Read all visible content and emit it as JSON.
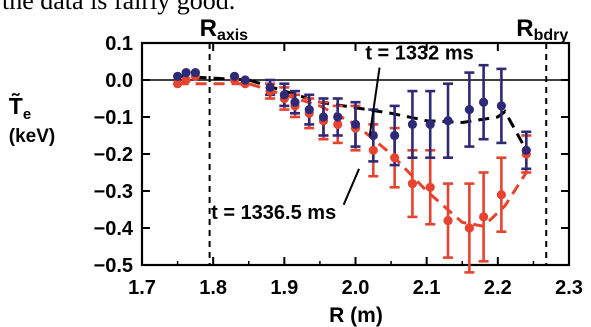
{
  "caption_fragment": "the data is fairly good.",
  "chart_data": {
    "type": "scatter",
    "title": "",
    "xlabel": "R (m)",
    "ylabel": "T̃e (keV)",
    "xlim": [
      1.7,
      2.3
    ],
    "ylim": [
      -0.5,
      0.1
    ],
    "xticks": [
      "1.7",
      "1.8",
      "1.9",
      "2.0",
      "2.1",
      "2.2",
      "2.3"
    ],
    "yticks": [
      "0.1",
      "0.0",
      "−0.1",
      "−0.2",
      "−0.3",
      "−0.4",
      "−0.5"
    ],
    "grid": false,
    "reference_lines": [
      {
        "label": "R",
        "subscript": "axis",
        "x": 1.795
      },
      {
        "label": "R",
        "subscript": "bdry",
        "x": 2.268
      }
    ],
    "zero_line": 0.0,
    "series": [
      {
        "name": "t = 1332 ms",
        "color": "#2e2a78",
        "points": [
          {
            "x": 1.75,
            "y": 0.01,
            "err": 0.0
          },
          {
            "x": 1.762,
            "y": 0.02,
            "err": 0.0
          },
          {
            "x": 1.775,
            "y": 0.02,
            "err": 0.0
          },
          {
            "x": 1.83,
            "y": 0.01,
            "err": 0.0
          },
          {
            "x": 1.845,
            "y": 0.0,
            "err": 0.0
          },
          {
            "x": 1.88,
            "y": -0.02,
            "err": 0.02
          },
          {
            "x": 1.9,
            "y": -0.04,
            "err": 0.03
          },
          {
            "x": 1.915,
            "y": -0.06,
            "err": 0.03
          },
          {
            "x": 1.935,
            "y": -0.08,
            "err": 0.04
          },
          {
            "x": 1.955,
            "y": -0.1,
            "err": 0.05
          },
          {
            "x": 1.975,
            "y": -0.1,
            "err": 0.05
          },
          {
            "x": 2.0,
            "y": -0.12,
            "err": 0.06
          },
          {
            "x": 2.025,
            "y": -0.15,
            "err": 0.07
          },
          {
            "x": 2.055,
            "y": -0.15,
            "err": 0.08
          },
          {
            "x": 2.08,
            "y": -0.12,
            "err": 0.09
          },
          {
            "x": 2.105,
            "y": -0.12,
            "err": 0.09
          },
          {
            "x": 2.13,
            "y": -0.11,
            "err": 0.1
          },
          {
            "x": 2.16,
            "y": -0.08,
            "err": 0.1
          },
          {
            "x": 2.18,
            "y": -0.06,
            "err": 0.1
          },
          {
            "x": 2.205,
            "y": -0.07,
            "err": 0.1
          },
          {
            "x": 2.24,
            "y": -0.19,
            "err": 0.05
          }
        ],
        "fit_line": {
          "style": "dashed",
          "points": [
            [
              1.75,
              0.01
            ],
            [
              1.85,
              0.0
            ],
            [
              1.95,
              -0.06
            ],
            [
              2.05,
              -0.09
            ],
            [
              2.1,
              -0.11
            ],
            [
              2.15,
              -0.115
            ],
            [
              2.2,
              -0.1
            ],
            [
              2.21,
              -0.085
            ],
            [
              2.24,
              -0.19
            ]
          ]
        }
      },
      {
        "name": "t = 1336.5 ms",
        "color": "#e8432e",
        "points": [
          {
            "x": 1.75,
            "y": -0.01,
            "err": 0.0
          },
          {
            "x": 1.762,
            "y": 0.0,
            "err": 0.0
          },
          {
            "x": 1.775,
            "y": 0.01,
            "err": 0.0
          },
          {
            "x": 1.83,
            "y": 0.0,
            "err": 0.0
          },
          {
            "x": 1.845,
            "y": -0.01,
            "err": 0.0
          },
          {
            "x": 1.88,
            "y": -0.03,
            "err": 0.02
          },
          {
            "x": 1.9,
            "y": -0.05,
            "err": 0.03
          },
          {
            "x": 1.915,
            "y": -0.07,
            "err": 0.03
          },
          {
            "x": 1.935,
            "y": -0.09,
            "err": 0.04
          },
          {
            "x": 1.955,
            "y": -0.11,
            "err": 0.05
          },
          {
            "x": 1.975,
            "y": -0.12,
            "err": 0.05
          },
          {
            "x": 2.0,
            "y": -0.13,
            "err": 0.06
          },
          {
            "x": 2.025,
            "y": -0.19,
            "err": 0.07
          },
          {
            "x": 2.055,
            "y": -0.21,
            "err": 0.08
          },
          {
            "x": 2.08,
            "y": -0.28,
            "err": 0.09
          },
          {
            "x": 2.105,
            "y": -0.29,
            "err": 0.1
          },
          {
            "x": 2.13,
            "y": -0.38,
            "err": 0.1
          },
          {
            "x": 2.16,
            "y": -0.4,
            "err": 0.12
          },
          {
            "x": 2.18,
            "y": -0.37,
            "err": 0.12
          },
          {
            "x": 2.205,
            "y": -0.31,
            "err": 0.1
          },
          {
            "x": 2.24,
            "y": -0.2,
            "err": 0.05
          }
        ],
        "fit_line": {
          "style": "dashed",
          "points": [
            [
              1.75,
              -0.01
            ],
            [
              1.85,
              -0.01
            ],
            [
              1.95,
              -0.07
            ],
            [
              2.0,
              -0.12
            ],
            [
              2.05,
              -0.2
            ],
            [
              2.1,
              -0.3
            ],
            [
              2.15,
              -0.385
            ],
            [
              2.18,
              -0.395
            ],
            [
              2.21,
              -0.34
            ],
            [
              2.24,
              -0.25
            ]
          ]
        }
      }
    ],
    "annotations": [
      {
        "text": "t = 1332 ms",
        "series": 0,
        "x": 2.09,
        "y": 0.055,
        "arrow_to": [
          2.02,
          -0.15
        ]
      },
      {
        "text": "t = 1336.5 ms",
        "series": 1,
        "x": 1.885,
        "y": -0.375,
        "arrow_to": [
          2.005,
          -0.24
        ]
      }
    ]
  }
}
